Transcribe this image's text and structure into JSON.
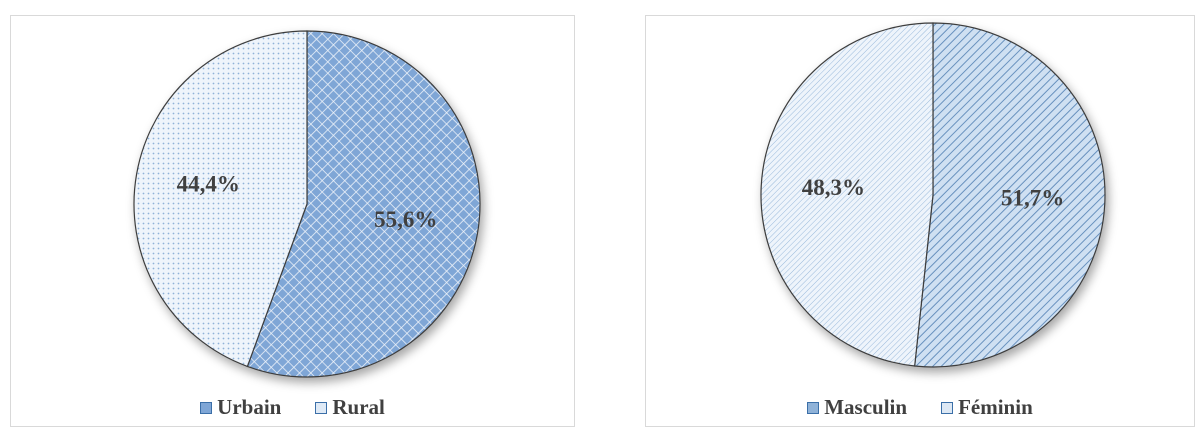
{
  "colors": {
    "blue_fill": "#7fa6d6",
    "blue_stroke": "#3b6fa8",
    "pale_fill": "#eef4fb",
    "pale_dot": "#8fb2d8",
    "text": "#404040",
    "border": "#d9d9d9"
  },
  "chart_data": [
    {
      "type": "pie",
      "title": "",
      "categories": [
        "Urbain",
        "Rural"
      ],
      "values": [
        55.6,
        44.4
      ],
      "labels": [
        "55,6%",
        "44,4%"
      ],
      "patterns": [
        "diamond-grid",
        "dots"
      ],
      "legend": {
        "position": "bottom",
        "items": [
          "Urbain",
          "Rural"
        ]
      }
    },
    {
      "type": "pie",
      "title": "",
      "categories": [
        "Masculin",
        "Féminin"
      ],
      "values": [
        51.7,
        48.3
      ],
      "labels": [
        "51,7%",
        "48,3%"
      ],
      "patterns": [
        "wide-hatch",
        "fine-hatch"
      ],
      "legend": {
        "position": "bottom",
        "items": [
          "Masculin",
          "Féminin"
        ]
      }
    }
  ]
}
